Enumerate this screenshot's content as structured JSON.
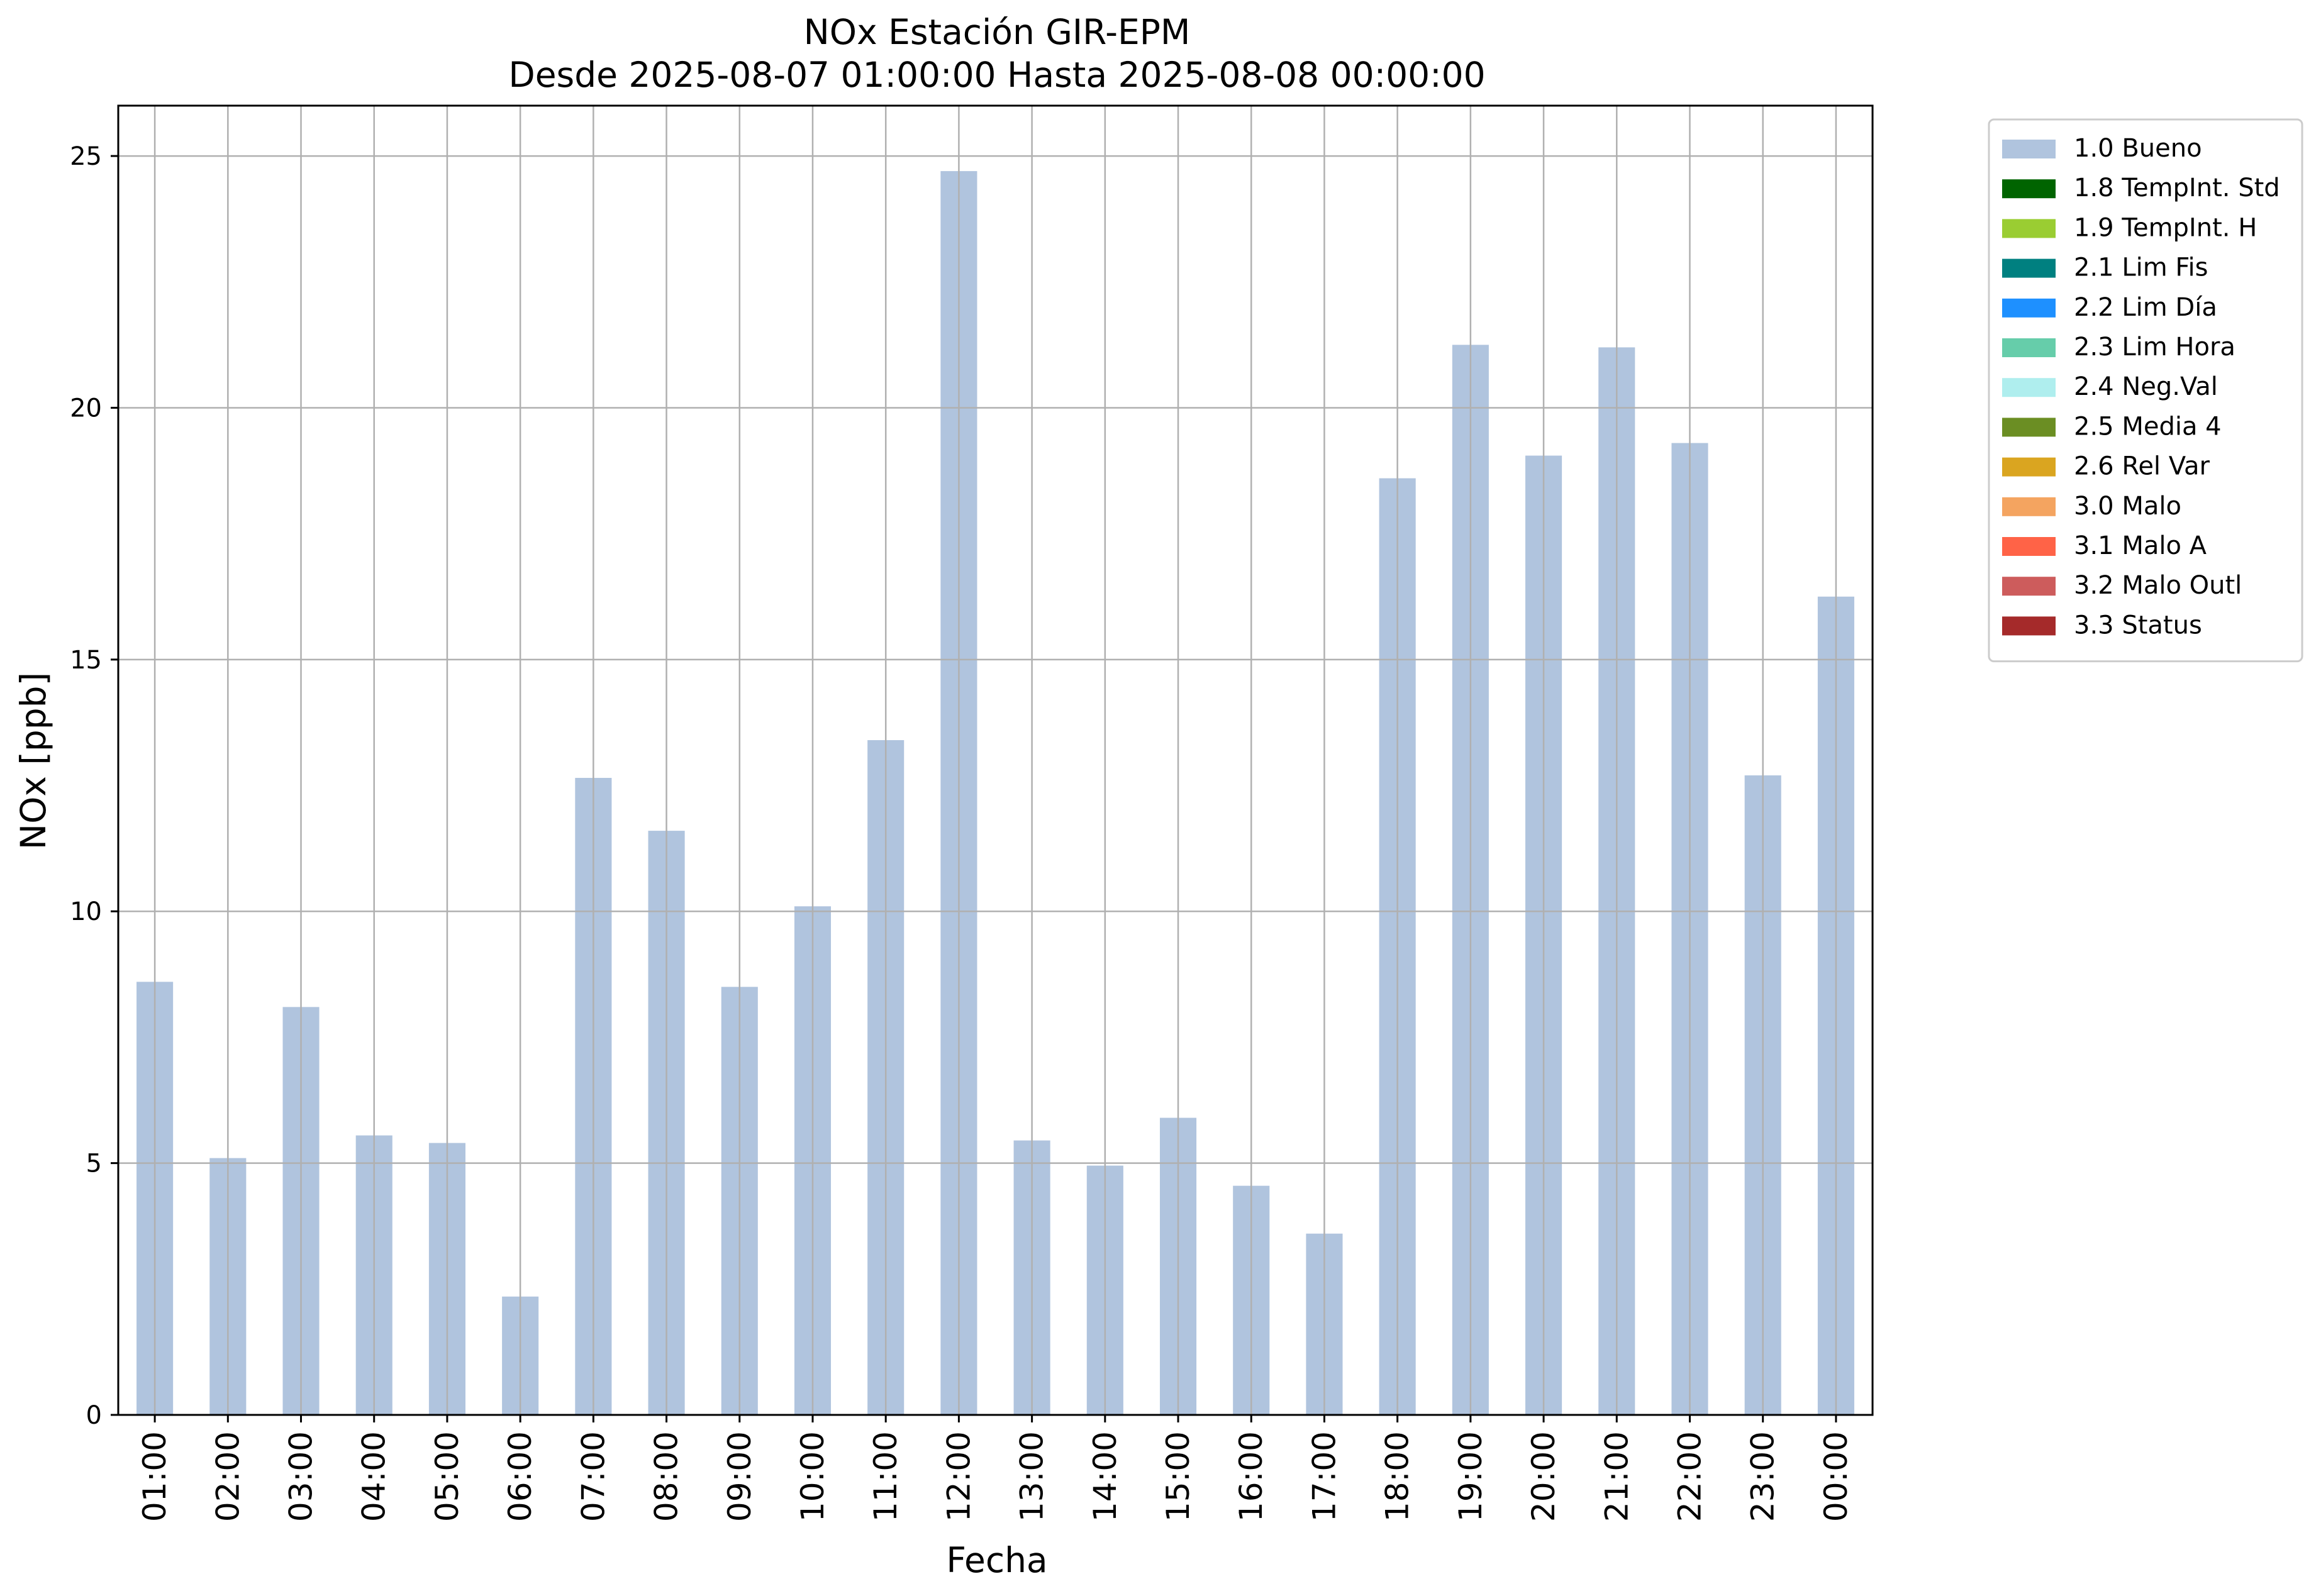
{
  "chart_data": {
    "type": "bar",
    "title": "NOx Estación GIR-EPM",
    "subtitle": "Desde 2025-08-07 01:00:00 Hasta 2025-08-08 00:00:00",
    "xlabel": "Fecha",
    "ylabel": "NOx [ppb]",
    "ylim": [
      0,
      26
    ],
    "yticks": [
      0,
      5,
      10,
      15,
      20,
      25
    ],
    "grid": true,
    "legend_position": "outside top-right",
    "categories": [
      "01:00",
      "02:00",
      "03:00",
      "04:00",
      "05:00",
      "06:00",
      "07:00",
      "08:00",
      "09:00",
      "10:00",
      "11:00",
      "12:00",
      "13:00",
      "14:00",
      "15:00",
      "16:00",
      "17:00",
      "18:00",
      "19:00",
      "20:00",
      "21:00",
      "22:00",
      "23:00",
      "00:00"
    ],
    "series": [
      {
        "name": "1.0 Bueno",
        "color": "#b0c4de",
        "values": [
          8.6,
          5.1,
          8.1,
          5.55,
          5.4,
          2.35,
          12.65,
          11.6,
          8.5,
          10.1,
          13.4,
          24.7,
          5.45,
          4.95,
          5.9,
          4.55,
          3.6,
          18.6,
          21.25,
          19.05,
          21.2,
          19.3,
          12.7,
          16.25
        ]
      }
    ],
    "legend": [
      {
        "label": "1.0 Bueno",
        "color": "#b0c4de"
      },
      {
        "label": "1.8 TempInt. Std",
        "color": "#006400"
      },
      {
        "label": "1.9 TempInt. H",
        "color": "#9acd32"
      },
      {
        "label": "2.1 Lim Fis",
        "color": "#008080"
      },
      {
        "label": "2.2 Lim Día",
        "color": "#1e90ff"
      },
      {
        "label": "2.3 Lim Hora",
        "color": "#66cdaa"
      },
      {
        "label": "2.4 Neg.Val",
        "color": "#afeeee"
      },
      {
        "label": "2.5 Media 4",
        "color": "#6b8e23"
      },
      {
        "label": "2.6 Rel Var",
        "color": "#daa520"
      },
      {
        "label": "3.0 Malo",
        "color": "#f4a460"
      },
      {
        "label": "3.1 Malo A",
        "color": "#ff6347"
      },
      {
        "label": "3.2 Malo Outl",
        "color": "#cd5c5c"
      },
      {
        "label": "3.3 Status",
        "color": "#a52a2a"
      }
    ]
  }
}
